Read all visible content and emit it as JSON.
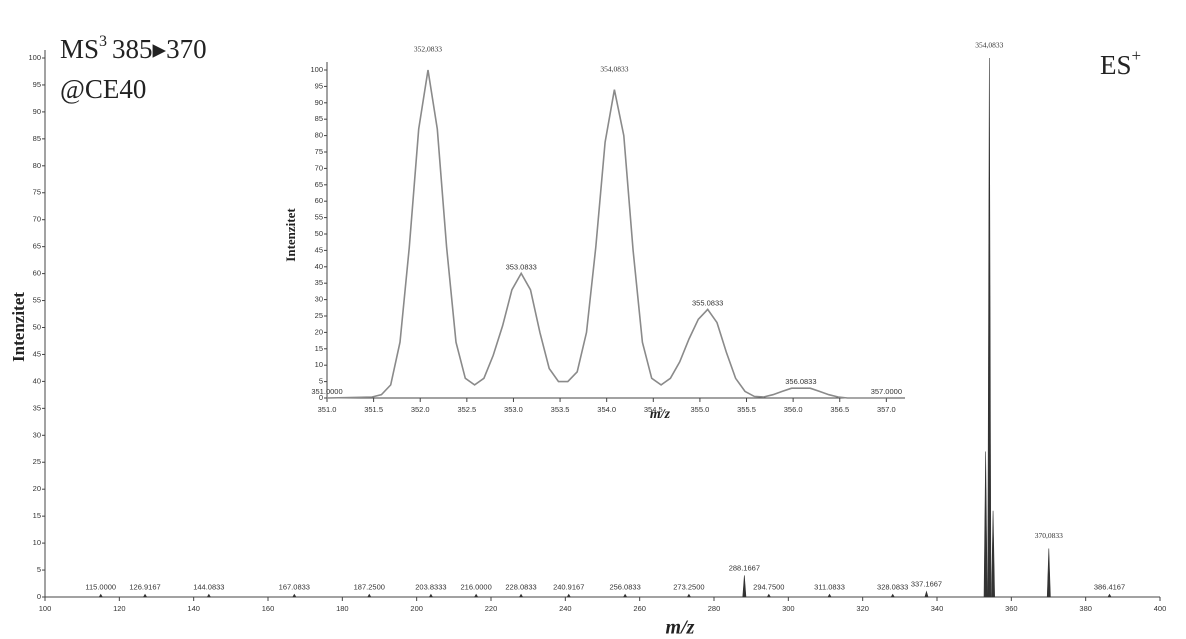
{
  "chart_data": [
    {
      "type": "stick",
      "label_ms": "MS",
      "label_ms_sup": "3",
      "label_ms_rest": "385▸370",
      "label_ce": "@CE40",
      "label_mode": "ES",
      "label_mode_sup": "+",
      "xlabel": "m/z",
      "ylabel": "Intenzitet",
      "color": "#333333",
      "x": [
        115,
        126.9167,
        144.0833,
        167.0833,
        187.25,
        203.8333,
        216,
        228.0833,
        240.9167,
        256.0833,
        273.25,
        288.1667,
        294.75,
        311.0833,
        328.0833,
        337.1667,
        353.0833,
        354.0833,
        355.0833,
        370.0833,
        386.4167
      ],
      "values": [
        0.5,
        0.5,
        0.5,
        0.5,
        0.5,
        0.5,
        0.5,
        0.5,
        0.5,
        0.5,
        0.5,
        4,
        0.5,
        0.5,
        0.5,
        1,
        27,
        100,
        16,
        9,
        0.5
      ],
      "x_labels": [
        "115.0000",
        "126.9167",
        "144.0833",
        "167.0833",
        "187.2500",
        "203.8333",
        "216.0000",
        "228.0833",
        "240.9167",
        "256.0833",
        "273.2500",
        "288.1667",
        "294.7500",
        "311.0833",
        "328.0833",
        "337.1667",
        null,
        "354,0833",
        null,
        "370,0833",
        "386.4167"
      ],
      "xlim": [
        100,
        400
      ],
      "xticks": [
        100,
        120,
        140,
        160,
        180,
        200,
        220,
        240,
        260,
        280,
        300,
        320,
        340,
        360,
        380,
        400
      ],
      "ylim": [
        0,
        100
      ],
      "yticks": [
        0,
        5,
        10,
        15,
        20,
        25,
        30,
        35,
        40,
        45,
        50,
        55,
        60,
        65,
        70,
        75,
        80,
        85,
        90,
        95,
        100
      ]
    },
    {
      "type": "line",
      "xlabel": "m/z",
      "ylabel": "Intenzitet",
      "color": "#8a8a8a",
      "x": [
        351.0,
        351.4833,
        351.5833,
        351.6833,
        351.7833,
        351.8833,
        351.9833,
        352.0833,
        352.1833,
        352.2833,
        352.3833,
        352.4833,
        352.5833,
        352.6833,
        352.7833,
        352.8833,
        352.9833,
        353.0833,
        353.1833,
        353.2833,
        353.3833,
        353.4833,
        353.5833,
        353.6833,
        353.7833,
        353.8833,
        353.9833,
        354.0833,
        354.1833,
        354.2833,
        354.3833,
        354.4833,
        354.5833,
        354.6833,
        354.7833,
        354.8833,
        354.9833,
        355.0833,
        355.1833,
        355.2833,
        355.3833,
        355.4833,
        355.5833,
        355.6833,
        355.7833,
        355.8833,
        355.9833,
        356.0833,
        356.1833,
        356.2833,
        356.3833,
        356.4833,
        356.5833,
        357.0
      ],
      "values": [
        0,
        0.3,
        1,
        4,
        17,
        46,
        82,
        100,
        82,
        46,
        17,
        6,
        4,
        6,
        13,
        22,
        33,
        38,
        33,
        20,
        9,
        5,
        5,
        8,
        20,
        46,
        78,
        94,
        80,
        45,
        17,
        6,
        4,
        6,
        11,
        18,
        24,
        27,
        23,
        14,
        6,
        2,
        0.5,
        0.3,
        1,
        2,
        3,
        3,
        3,
        2,
        1,
        0.3,
        0,
        0
      ],
      "peaks": {
        "x": [
          351.0,
          352.0833,
          353.0833,
          354.0833,
          355.0833,
          356.0833,
          357.0
        ],
        "values": [
          0,
          100,
          38,
          94,
          27,
          3,
          0
        ],
        "labels": [
          "351.0000",
          "352,0833",
          "353.0833",
          "354,0833",
          "355.0833",
          "356.0833",
          "357.0000"
        ]
      },
      "xlim": [
        351,
        357.2
      ],
      "xticks": [
        {
          "value": 351,
          "label": "351.0"
        },
        {
          "value": 351.5,
          "label": "351.5"
        },
        {
          "value": 352,
          "label": "352.0"
        },
        {
          "value": 352.5,
          "label": "352.5"
        },
        {
          "value": 353,
          "label": "353.0"
        },
        {
          "value": 353.5,
          "label": "353.5"
        },
        {
          "value": 354,
          "label": "354.0"
        },
        {
          "value": 354.5,
          "label": "354.5"
        },
        {
          "value": 355,
          "label": "355.0"
        },
        {
          "value": 355.5,
          "label": "355.5"
        },
        {
          "value": 356,
          "label": "356.0"
        },
        {
          "value": 356.5,
          "label": "356.5"
        },
        {
          "value": 357,
          "label": "357.0"
        }
      ],
      "ylim": [
        0,
        100
      ],
      "yticks": [
        0,
        5,
        10,
        15,
        20,
        25,
        30,
        35,
        40,
        45,
        50,
        55,
        60,
        65,
        70,
        75,
        80,
        85,
        90,
        95,
        100
      ]
    }
  ]
}
